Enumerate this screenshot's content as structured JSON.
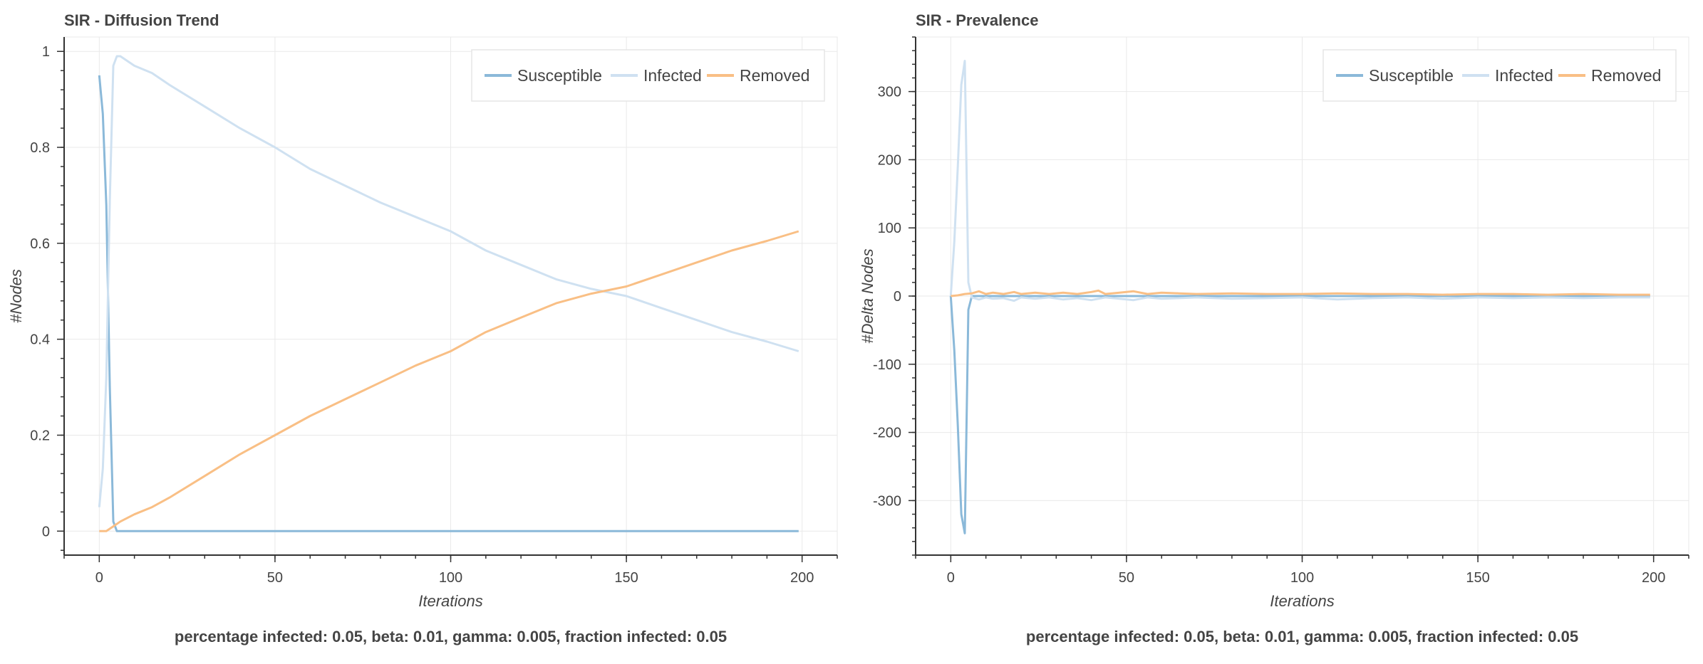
{
  "colors": {
    "susceptible": "#8bb9d9",
    "infected": "#cfe1f1",
    "removed": "#f9bf85",
    "grid": "#e9e9e9",
    "axis": "#333333",
    "text": "#444444"
  },
  "chart_data": [
    {
      "type": "line",
      "title": "SIR - Diffusion Trend",
      "xlabel": "Iterations",
      "ylabel": "#Nodes",
      "caption": "percentage infected: 0.05, beta: 0.01, gamma: 0.005, fraction infected: 0.05",
      "xlim": [
        -10,
        210
      ],
      "ylim": [
        -0.05,
        1.03
      ],
      "xticks": [
        0,
        50,
        100,
        150,
        200
      ],
      "xtick_labels": [
        "0",
        "50",
        "100",
        "150",
        "200"
      ],
      "yticks": [
        0,
        0.2,
        0.4,
        0.6,
        0.8,
        1
      ],
      "ytick_labels": [
        "0",
        "0.2",
        "0.4",
        "0.6",
        "0.8",
        "1"
      ],
      "grid": true,
      "legend_position": "top-right",
      "series": [
        {
          "name": "Susceptible",
          "color_key": "susceptible",
          "x": [
            0,
            1,
            2,
            3,
            4,
            5,
            6,
            10,
            50,
            100,
            150,
            199
          ],
          "y": [
            0.95,
            0.87,
            0.68,
            0.3,
            0.02,
            0.0,
            0.0,
            0.0,
            0.0,
            0.0,
            0.0,
            0.0
          ]
        },
        {
          "name": "Infected",
          "color_key": "infected",
          "x": [
            0,
            1,
            2,
            3,
            4,
            5,
            6,
            10,
            15,
            20,
            30,
            40,
            50,
            60,
            70,
            80,
            90,
            100,
            110,
            120,
            130,
            140,
            150,
            160,
            170,
            180,
            190,
            199
          ],
          "y": [
            0.05,
            0.13,
            0.32,
            0.69,
            0.97,
            0.99,
            0.99,
            0.97,
            0.955,
            0.93,
            0.885,
            0.84,
            0.8,
            0.755,
            0.72,
            0.685,
            0.655,
            0.625,
            0.585,
            0.555,
            0.525,
            0.505,
            0.49,
            0.465,
            0.44,
            0.415,
            0.395,
            0.375
          ]
        },
        {
          "name": "Removed",
          "color_key": "removed",
          "x": [
            0,
            2,
            4,
            6,
            10,
            15,
            20,
            30,
            40,
            50,
            60,
            70,
            80,
            90,
            100,
            110,
            120,
            130,
            140,
            150,
            160,
            170,
            180,
            190,
            199
          ],
          "y": [
            0.0,
            0.0,
            0.01,
            0.02,
            0.035,
            0.05,
            0.07,
            0.115,
            0.16,
            0.2,
            0.24,
            0.275,
            0.31,
            0.345,
            0.375,
            0.415,
            0.445,
            0.475,
            0.495,
            0.51,
            0.535,
            0.56,
            0.585,
            0.605,
            0.625
          ]
        }
      ]
    },
    {
      "type": "line",
      "title": "SIR - Prevalence",
      "xlabel": "Iterations",
      "ylabel": "#Delta Nodes",
      "caption": "percentage infected: 0.05, beta: 0.01, gamma: 0.005, fraction infected: 0.05",
      "xlim": [
        -10,
        210
      ],
      "ylim": [
        -380,
        380
      ],
      "xticks": [
        0,
        50,
        100,
        150,
        200
      ],
      "xtick_labels": [
        "0",
        "50",
        "100",
        "150",
        "200"
      ],
      "yticks": [
        -300,
        -200,
        -100,
        0,
        100,
        200,
        300
      ],
      "ytick_labels": [
        "-300",
        "-200",
        "-100",
        "0",
        "100",
        "200",
        "300"
      ],
      "grid": true,
      "legend_position": "top-right",
      "series": [
        {
          "name": "Susceptible",
          "color_key": "susceptible",
          "x": [
            0,
            1,
            2,
            3,
            4,
            5,
            6,
            8,
            20,
            50,
            100,
            150,
            199
          ],
          "y": [
            0,
            -80,
            -190,
            -320,
            -348,
            -20,
            0,
            0,
            0,
            0,
            0,
            0,
            0
          ]
        },
        {
          "name": "Infected",
          "color_key": "infected",
          "x": [
            0,
            1,
            2,
            3,
            4,
            5,
            6,
            8,
            10,
            12,
            15,
            18,
            20,
            24,
            28,
            32,
            36,
            40,
            44,
            48,
            52,
            56,
            60,
            65,
            70,
            80,
            90,
            100,
            110,
            120,
            130,
            140,
            150,
            160,
            170,
            180,
            190,
            199
          ],
          "y": [
            0,
            80,
            190,
            310,
            345,
            20,
            -2,
            -5,
            -2,
            -4,
            -3,
            -7,
            -2,
            -4,
            -2,
            -5,
            -3,
            -6,
            -2,
            -4,
            -6,
            -2,
            -4,
            -3,
            -2,
            -4,
            -3,
            -2,
            -5,
            -3,
            -2,
            -4,
            -2,
            -3,
            -2,
            -3,
            -2,
            -2
          ]
        },
        {
          "name": "Removed",
          "color_key": "removed",
          "x": [
            0,
            2,
            4,
            6,
            8,
            10,
            12,
            15,
            18,
            20,
            24,
            28,
            32,
            36,
            40,
            42,
            44,
            48,
            52,
            56,
            60,
            65,
            70,
            80,
            90,
            100,
            110,
            120,
            130,
            140,
            150,
            160,
            170,
            180,
            190,
            199
          ],
          "y": [
            0,
            1,
            3,
            4,
            7,
            3,
            5,
            3,
            6,
            3,
            5,
            3,
            5,
            3,
            6,
            8,
            3,
            5,
            7,
            3,
            5,
            4,
            3,
            4,
            3,
            3,
            4,
            3,
            3,
            2,
            3,
            3,
            2,
            3,
            2,
            2
          ]
        }
      ]
    }
  ]
}
